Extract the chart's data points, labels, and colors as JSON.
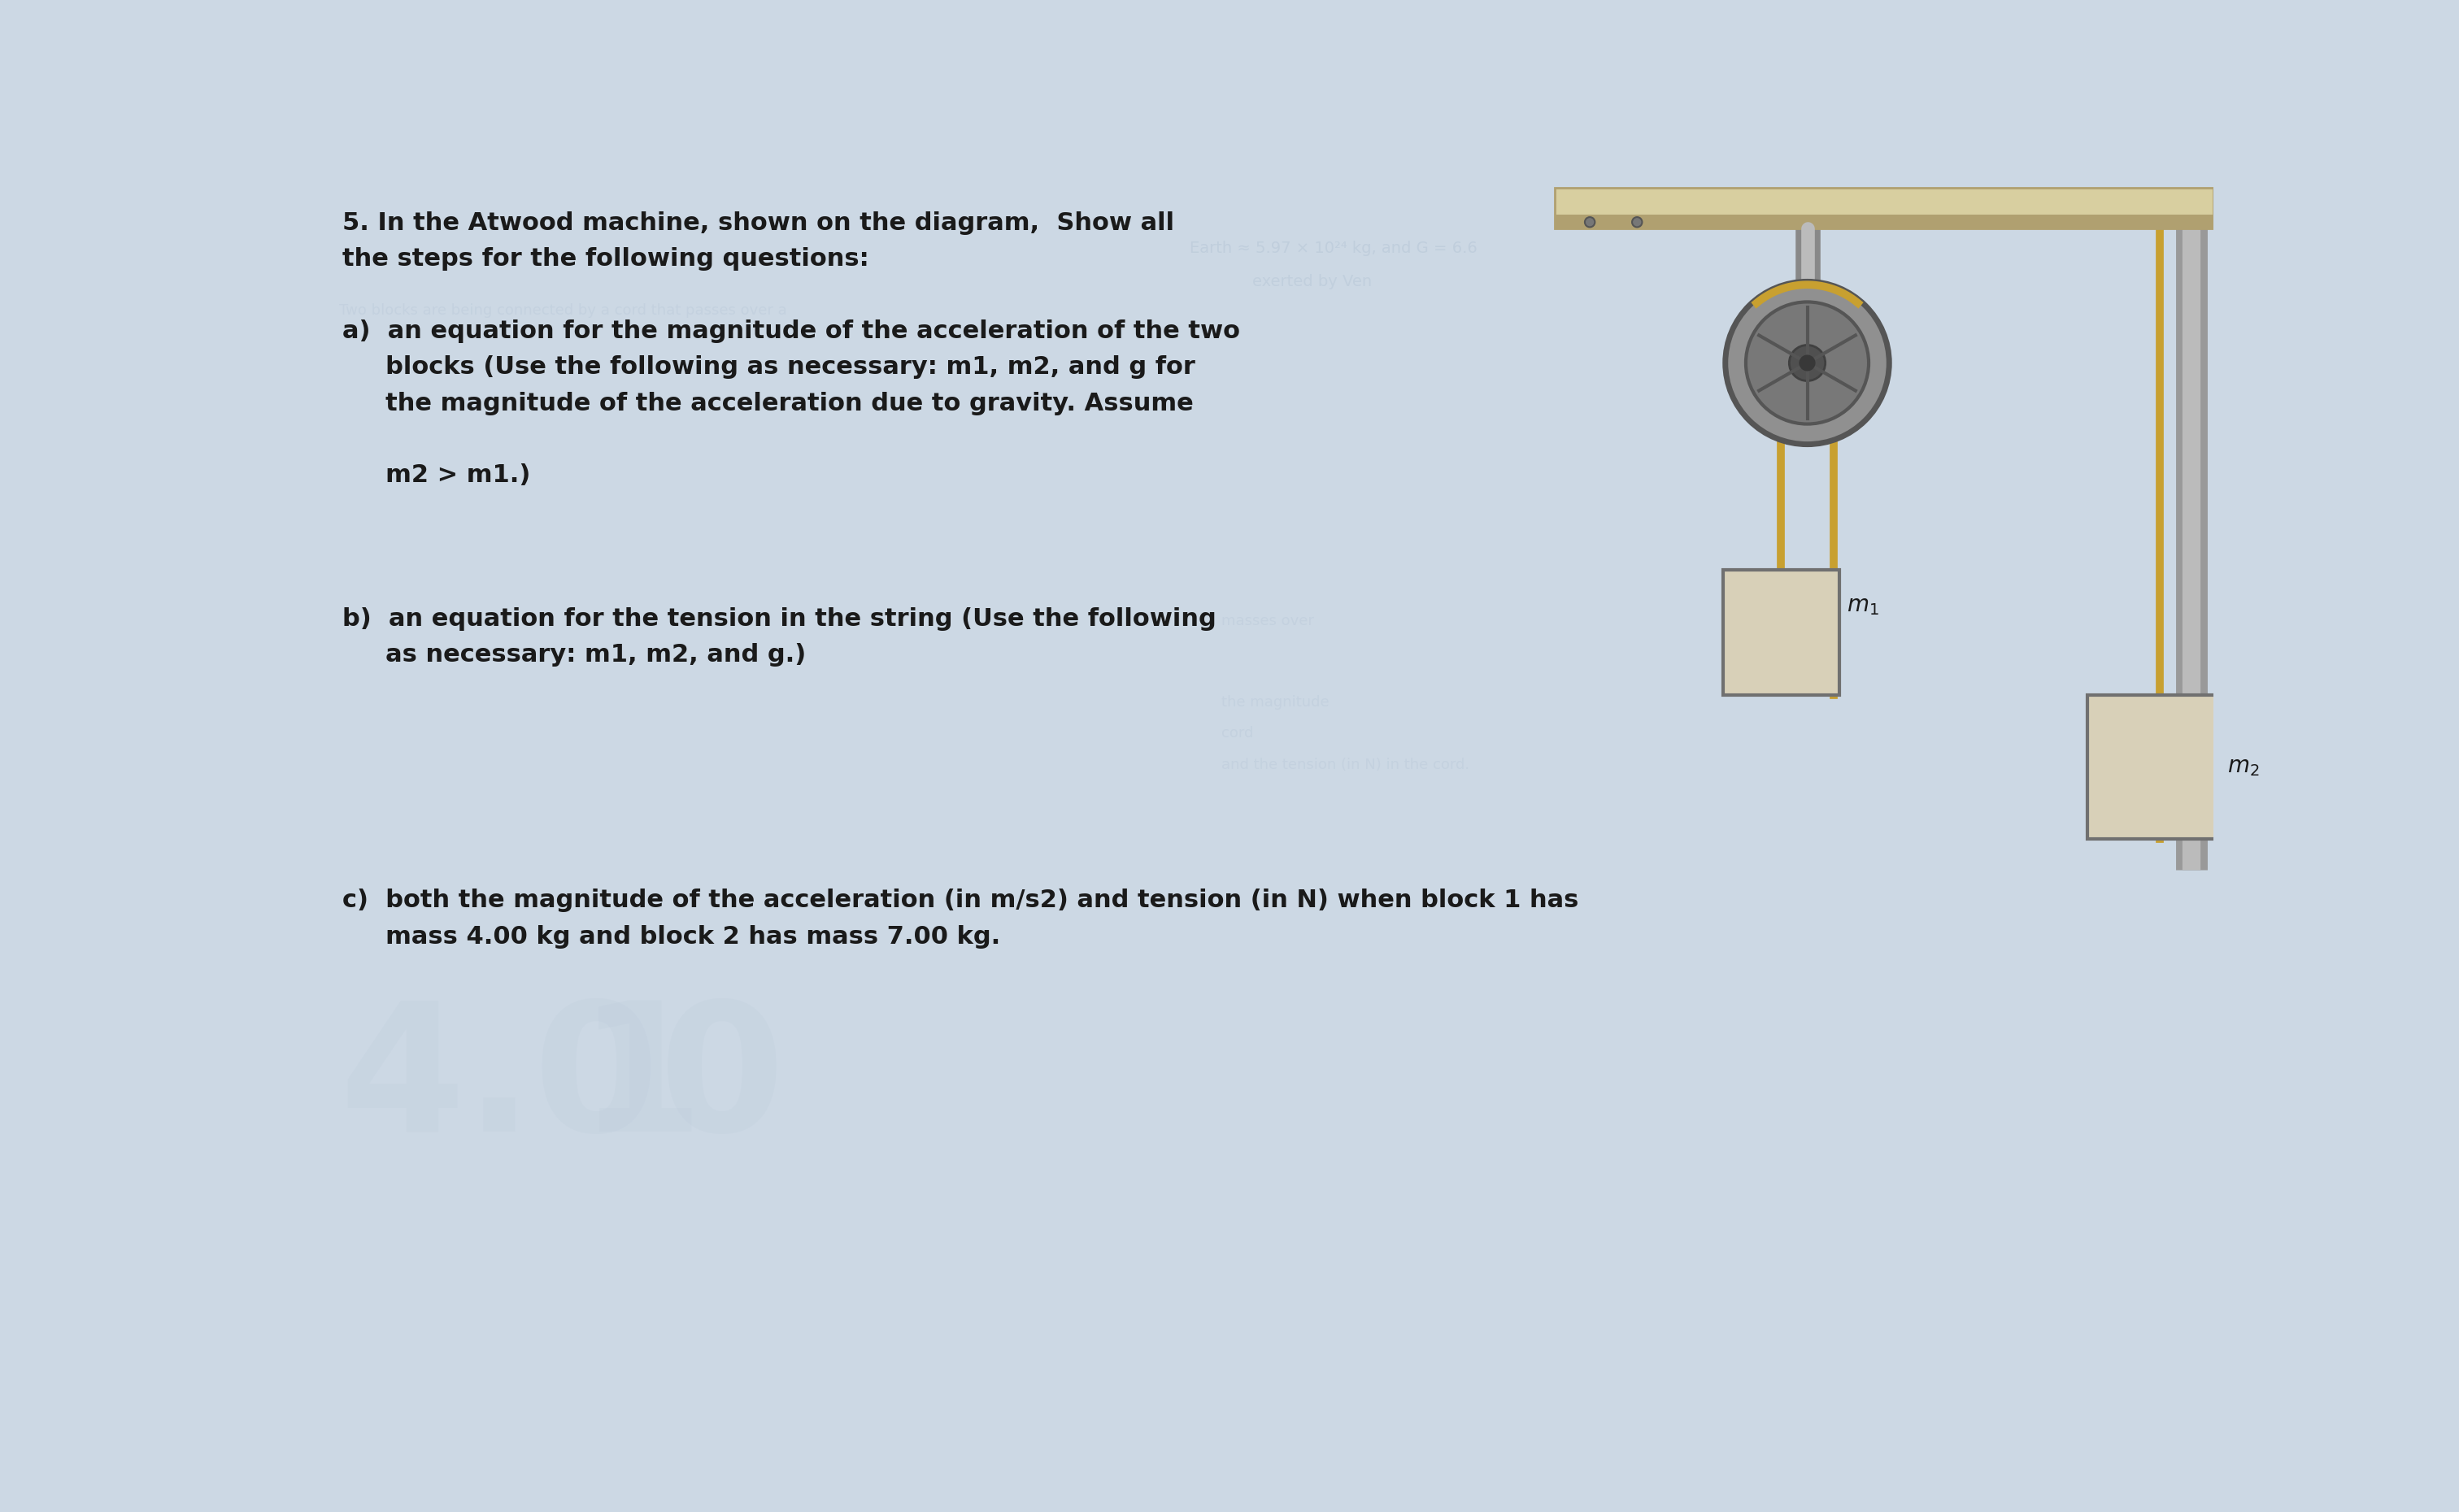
{
  "bg_color": "#ccd8e4",
  "text_color": "#1a1a1a",
  "shelf_color": "#d8cfa0",
  "shelf_dark": "#b0a070",
  "rope_color": "#c8a030",
  "pulley_rim_color": "#909090",
  "pulley_face_color": "#808080",
  "pulley_inner_color": "#686868",
  "pulley_hub_color": "#505050",
  "block_fill": "#d8d0b8",
  "block_edge": "#707070",
  "support_color": "#909090",
  "support_light": "#bbbbbb",
  "watermark_color": "#b8c8d8",
  "title_line1": "5. In the Atwood machine, shown on the diagram,  Show all",
  "title_line2": "the steps for the following questions:",
  "a_line1": "a)  an equation for the magnitude of the acceleration of the two",
  "a_line2": "     blocks (Use the following as necessary: m1, m2, and g for",
  "a_line3": "     the magnitude of the acceleration due to gravity. Assume",
  "a_line4": "     m2 > m1.)",
  "b_line1": "b)  an equation for the tension in the string (Use the following",
  "b_line2": "     as necessary: m1, m2, and g.)",
  "c_line1": "c)  both the magnitude of the acceleration (in m/s2) and tension (in N) when block 1 has",
  "c_line2": "     mass 4.00 kg and block 2 has mass 7.00 kg.",
  "fontsize_main": 22,
  "fontsize_label": 18
}
